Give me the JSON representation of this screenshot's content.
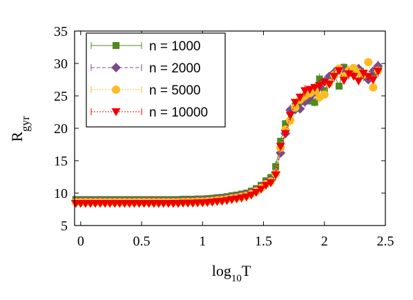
{
  "chart_data": {
    "type": "scatter",
    "title": "",
    "xlabel": {
      "main": "log",
      "sub": "10",
      "tail": "T"
    },
    "ylabel": {
      "main": "R",
      "sub": "gyr"
    },
    "xlim": [
      -0.05,
      2.5
    ],
    "ylim": [
      5,
      35
    ],
    "xticks": [
      0,
      0.5,
      1,
      1.5,
      2,
      2.5
    ],
    "xtick_labels": [
      "0",
      "0.5",
      "1",
      "1.5",
      "2",
      "2.5"
    ],
    "yticks": [
      5,
      10,
      15,
      20,
      25,
      30,
      35
    ],
    "ytick_labels": [
      "5",
      "10",
      "15",
      "20",
      "25",
      "30",
      "35"
    ],
    "grid": false,
    "legend_position": "top-left",
    "series": [
      {
        "name": "n = 1000",
        "color": "#4f8a1f",
        "marker": "square",
        "line": "solid",
        "points": [
          [
            -0.04,
            9.0
          ],
          [
            0.0,
            9.0
          ],
          [
            0.04,
            9.0
          ],
          [
            0.08,
            9.0
          ],
          [
            0.12,
            9.0
          ],
          [
            0.16,
            9.0
          ],
          [
            0.2,
            9.0
          ],
          [
            0.24,
            9.0
          ],
          [
            0.28,
            9.0
          ],
          [
            0.32,
            9.0
          ],
          [
            0.36,
            9.0
          ],
          [
            0.4,
            9.0
          ],
          [
            0.44,
            9.0
          ],
          [
            0.48,
            9.0
          ],
          [
            0.52,
            9.0
          ],
          [
            0.56,
            9.0
          ],
          [
            0.6,
            9.0
          ],
          [
            0.64,
            9.0
          ],
          [
            0.68,
            9.0
          ],
          [
            0.72,
            9.0
          ],
          [
            0.76,
            9.0
          ],
          [
            0.8,
            9.0
          ],
          [
            0.84,
            9.05
          ],
          [
            0.88,
            9.05
          ],
          [
            0.92,
            9.05
          ],
          [
            0.96,
            9.1
          ],
          [
            1.0,
            9.1
          ],
          [
            1.04,
            9.15
          ],
          [
            1.08,
            9.2
          ],
          [
            1.12,
            9.3
          ],
          [
            1.16,
            9.35
          ],
          [
            1.2,
            9.45
          ],
          [
            1.24,
            9.6
          ],
          [
            1.28,
            9.7
          ],
          [
            1.32,
            9.85
          ],
          [
            1.36,
            10.0
          ],
          [
            1.4,
            10.3
          ],
          [
            1.44,
            10.7
          ],
          [
            1.48,
            11.2
          ],
          [
            1.52,
            11.9
          ],
          [
            1.56,
            12.4
          ],
          [
            1.6,
            14.1
          ],
          [
            1.64,
            18.0
          ],
          [
            1.68,
            20.7
          ],
          [
            1.72,
            22.6
          ],
          [
            1.76,
            23.4
          ],
          [
            1.8,
            24.1
          ],
          [
            1.84,
            24.7
          ],
          [
            1.88,
            24.2
          ],
          [
            1.92,
            24.0
          ],
          [
            1.96,
            27.6
          ],
          [
            2.0,
            25.8
          ],
          [
            2.04,
            27.4
          ],
          [
            2.08,
            28.3
          ],
          [
            2.12,
            26.5
          ],
          [
            2.16,
            29.4
          ],
          [
            2.2,
            28.8
          ],
          [
            2.24,
            28.5
          ],
          [
            2.28,
            28.7
          ],
          [
            2.32,
            28.1
          ],
          [
            2.36,
            27.9
          ],
          [
            2.4,
            28.6
          ],
          [
            2.44,
            29.3
          ]
        ]
      },
      {
        "name": "n = 2000",
        "color": "#7a4a8c",
        "marker": "diamond",
        "line": "dashed",
        "points": [
          [
            -0.04,
            8.8
          ],
          [
            0.0,
            8.8
          ],
          [
            0.04,
            8.8
          ],
          [
            0.08,
            8.8
          ],
          [
            0.12,
            8.8
          ],
          [
            0.16,
            8.8
          ],
          [
            0.2,
            8.8
          ],
          [
            0.24,
            8.8
          ],
          [
            0.28,
            8.8
          ],
          [
            0.32,
            8.8
          ],
          [
            0.36,
            8.8
          ],
          [
            0.4,
            8.8
          ],
          [
            0.44,
            8.8
          ],
          [
            0.48,
            8.8
          ],
          [
            0.52,
            8.8
          ],
          [
            0.56,
            8.8
          ],
          [
            0.6,
            8.8
          ],
          [
            0.64,
            8.8
          ],
          [
            0.68,
            8.8
          ],
          [
            0.72,
            8.8
          ],
          [
            0.76,
            8.8
          ],
          [
            0.8,
            8.8
          ],
          [
            0.84,
            8.85
          ],
          [
            0.88,
            8.85
          ],
          [
            0.92,
            8.85
          ],
          [
            0.96,
            8.9
          ],
          [
            1.0,
            8.9
          ],
          [
            1.04,
            8.95
          ],
          [
            1.08,
            9.0
          ],
          [
            1.12,
            9.1
          ],
          [
            1.16,
            9.15
          ],
          [
            1.2,
            9.25
          ],
          [
            1.24,
            9.4
          ],
          [
            1.28,
            9.5
          ],
          [
            1.32,
            9.65
          ],
          [
            1.36,
            9.8
          ],
          [
            1.4,
            10.1
          ],
          [
            1.44,
            10.5
          ],
          [
            1.48,
            11.0
          ],
          [
            1.52,
            11.6
          ],
          [
            1.56,
            12.0
          ],
          [
            1.6,
            13.2
          ],
          [
            1.64,
            16.2
          ],
          [
            1.68,
            19.2
          ],
          [
            1.72,
            22.8
          ],
          [
            1.76,
            22.9
          ],
          [
            1.8,
            23.0
          ],
          [
            1.84,
            24.1
          ],
          [
            1.88,
            24.8
          ],
          [
            1.92,
            25.6
          ],
          [
            1.96,
            26.4
          ],
          [
            2.0,
            27.2
          ],
          [
            2.04,
            28.0
          ],
          [
            2.08,
            28.6
          ],
          [
            2.12,
            29.1
          ],
          [
            2.16,
            29.0
          ],
          [
            2.2,
            28.6
          ],
          [
            2.24,
            28.8
          ],
          [
            2.28,
            29.2
          ],
          [
            2.32,
            28.4
          ],
          [
            2.36,
            27.5
          ],
          [
            2.4,
            28.8
          ],
          [
            2.44,
            29.6
          ]
        ]
      },
      {
        "name": "n = 5000",
        "color": "#ffbb22",
        "marker": "circle",
        "line": "dotted",
        "points": [
          [
            -0.04,
            8.6
          ],
          [
            0.0,
            8.6
          ],
          [
            0.04,
            8.6
          ],
          [
            0.08,
            8.6
          ],
          [
            0.12,
            8.6
          ],
          [
            0.16,
            8.6
          ],
          [
            0.2,
            8.6
          ],
          [
            0.24,
            8.6
          ],
          [
            0.28,
            8.6
          ],
          [
            0.32,
            8.6
          ],
          [
            0.36,
            8.6
          ],
          [
            0.4,
            8.6
          ],
          [
            0.44,
            8.6
          ],
          [
            0.48,
            8.6
          ],
          [
            0.52,
            8.6
          ],
          [
            0.56,
            8.6
          ],
          [
            0.6,
            8.6
          ],
          [
            0.64,
            8.6
          ],
          [
            0.68,
            8.6
          ],
          [
            0.72,
            8.6
          ],
          [
            0.76,
            8.6
          ],
          [
            0.8,
            8.6
          ],
          [
            0.84,
            8.65
          ],
          [
            0.88,
            8.65
          ],
          [
            0.92,
            8.65
          ],
          [
            0.96,
            8.7
          ],
          [
            1.0,
            8.7
          ],
          [
            1.04,
            8.75
          ],
          [
            1.08,
            8.8
          ],
          [
            1.12,
            8.9
          ],
          [
            1.16,
            8.95
          ],
          [
            1.2,
            9.05
          ],
          [
            1.24,
            9.2
          ],
          [
            1.28,
            9.3
          ],
          [
            1.32,
            9.45
          ],
          [
            1.36,
            9.6
          ],
          [
            1.4,
            9.9
          ],
          [
            1.44,
            10.3
          ],
          [
            1.48,
            10.8
          ],
          [
            1.52,
            11.4
          ],
          [
            1.56,
            11.8
          ],
          [
            1.6,
            13.0
          ],
          [
            1.64,
            17.0
          ],
          [
            1.68,
            19.8
          ],
          [
            1.72,
            21.2
          ],
          [
            1.76,
            23.2
          ],
          [
            1.8,
            24.4
          ],
          [
            1.84,
            25.0
          ],
          [
            1.88,
            25.4
          ],
          [
            1.92,
            25.8
          ],
          [
            1.96,
            24.8
          ],
          [
            2.0,
            25.2
          ],
          [
            2.04,
            27.0
          ],
          [
            2.08,
            28.2
          ],
          [
            2.12,
            29.2
          ],
          [
            2.16,
            28.0
          ],
          [
            2.2,
            28.9
          ],
          [
            2.24,
            29.3
          ],
          [
            2.28,
            28.6
          ],
          [
            2.32,
            28.3
          ],
          [
            2.36,
            30.2
          ],
          [
            2.4,
            26.3
          ],
          [
            2.44,
            28.9
          ]
        ]
      },
      {
        "name": "n = 10000",
        "color": "#ee0000",
        "marker": "triangle-down",
        "line": "dotted",
        "points": [
          [
            -0.04,
            8.4
          ],
          [
            0.0,
            8.4
          ],
          [
            0.04,
            8.4
          ],
          [
            0.08,
            8.4
          ],
          [
            0.12,
            8.4
          ],
          [
            0.16,
            8.4
          ],
          [
            0.2,
            8.4
          ],
          [
            0.24,
            8.4
          ],
          [
            0.28,
            8.4
          ],
          [
            0.32,
            8.4
          ],
          [
            0.36,
            8.4
          ],
          [
            0.4,
            8.4
          ],
          [
            0.44,
            8.4
          ],
          [
            0.48,
            8.4
          ],
          [
            0.52,
            8.4
          ],
          [
            0.56,
            8.4
          ],
          [
            0.6,
            8.4
          ],
          [
            0.64,
            8.4
          ],
          [
            0.68,
            8.4
          ],
          [
            0.72,
            8.4
          ],
          [
            0.76,
            8.4
          ],
          [
            0.8,
            8.4
          ],
          [
            0.84,
            8.45
          ],
          [
            0.88,
            8.45
          ],
          [
            0.92,
            8.45
          ],
          [
            0.96,
            8.5
          ],
          [
            1.0,
            8.5
          ],
          [
            1.04,
            8.55
          ],
          [
            1.08,
            8.6
          ],
          [
            1.12,
            8.7
          ],
          [
            1.16,
            8.75
          ],
          [
            1.2,
            8.85
          ],
          [
            1.24,
            9.0
          ],
          [
            1.28,
            9.1
          ],
          [
            1.32,
            9.25
          ],
          [
            1.36,
            9.4
          ],
          [
            1.4,
            9.7
          ],
          [
            1.44,
            10.1
          ],
          [
            1.48,
            10.6
          ],
          [
            1.52,
            11.2
          ],
          [
            1.56,
            11.6
          ],
          [
            1.6,
            12.8
          ],
          [
            1.64,
            17.2
          ],
          [
            1.68,
            19.2
          ],
          [
            1.72,
            22.0
          ],
          [
            1.76,
            24.0
          ],
          [
            1.8,
            24.8
          ],
          [
            1.84,
            25.8
          ],
          [
            1.88,
            26.0
          ],
          [
            1.92,
            26.3
          ],
          [
            1.96,
            26.6
          ],
          [
            2.0,
            27.1
          ],
          [
            2.04,
            26.8
          ],
          [
            2.08,
            28.0
          ],
          [
            2.12,
            28.9
          ],
          [
            2.16,
            27.4
          ],
          [
            2.2,
            28.4
          ],
          [
            2.24,
            28.0
          ],
          [
            2.28,
            27.3
          ],
          [
            2.32,
            28.5
          ],
          [
            2.36,
            28.0
          ],
          [
            2.4,
            27.5
          ],
          [
            2.44,
            28.8
          ]
        ]
      }
    ]
  }
}
